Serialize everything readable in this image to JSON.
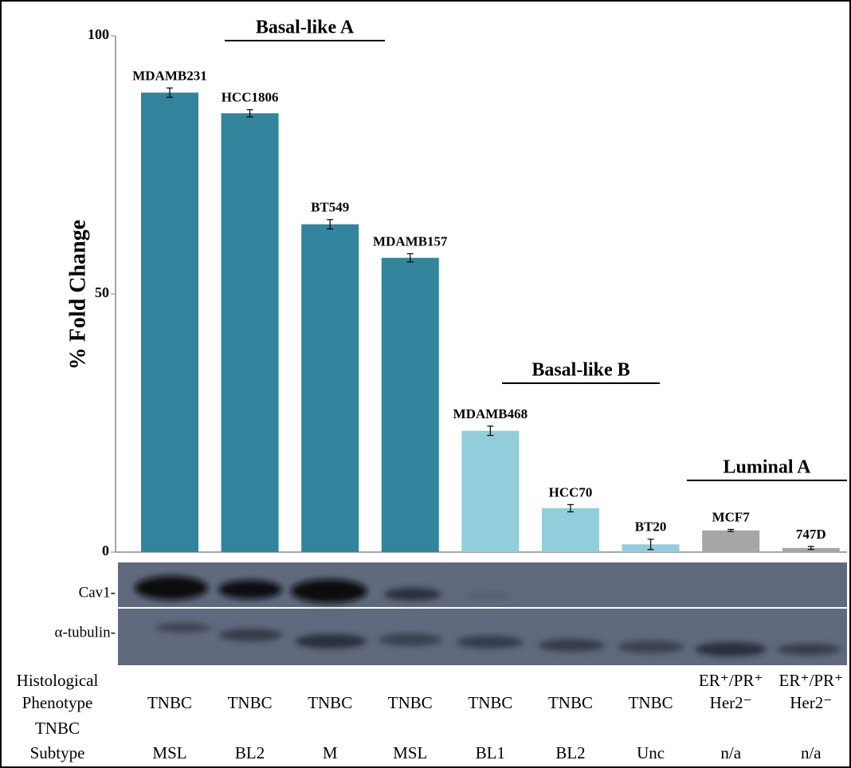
{
  "chart_data": {
    "type": "bar",
    "y_label": "% Fold Change",
    "categories": [
      "MDAMB231",
      "HCC1806",
      "BT549",
      "MDAMB157",
      "MDAMB468",
      "HCC70",
      "BT20",
      "MCF7",
      "747D"
    ],
    "values": [
      89,
      85,
      63.5,
      57,
      23.5,
      8.5,
      1.5,
      4.2,
      0.8
    ],
    "errors": [
      0.9,
      0.7,
      0.9,
      0.8,
      0.9,
      0.7,
      1.0,
      0.2,
      0.3
    ],
    "colors": [
      "#31849b",
      "#31849b",
      "#31849b",
      "#31849b",
      "#92cddc",
      "#92cddc",
      "#92cddc",
      "#a6a6a6",
      "#a6a6a6"
    ],
    "groups": [
      "Basal-like A",
      "Basal-like B",
      "Luminal A"
    ],
    "ylim": [
      0,
      100
    ],
    "yticks": [
      0,
      50,
      100
    ]
  },
  "blot": {
    "rows": [
      "Cav1-",
      "α-tubulin-"
    ]
  },
  "table": {
    "rows": [
      {
        "label": [
          "Histological",
          "Phenotype"
        ],
        "values": [
          "TNBC",
          "TNBC",
          "TNBC",
          "TNBC",
          "TNBC",
          "TNBC",
          "TNBC",
          [
            "ER⁺/PR⁺",
            "Her2⁻"
          ],
          [
            "ER⁺/PR⁺",
            "Her2⁻"
          ]
        ]
      },
      {
        "label": [
          "TNBC",
          "Subtype"
        ],
        "values": [
          "MSL",
          "BL2",
          "M",
          "MSL",
          "BL1",
          "BL2",
          "Unc",
          "n/a",
          "n/a"
        ]
      }
    ]
  }
}
